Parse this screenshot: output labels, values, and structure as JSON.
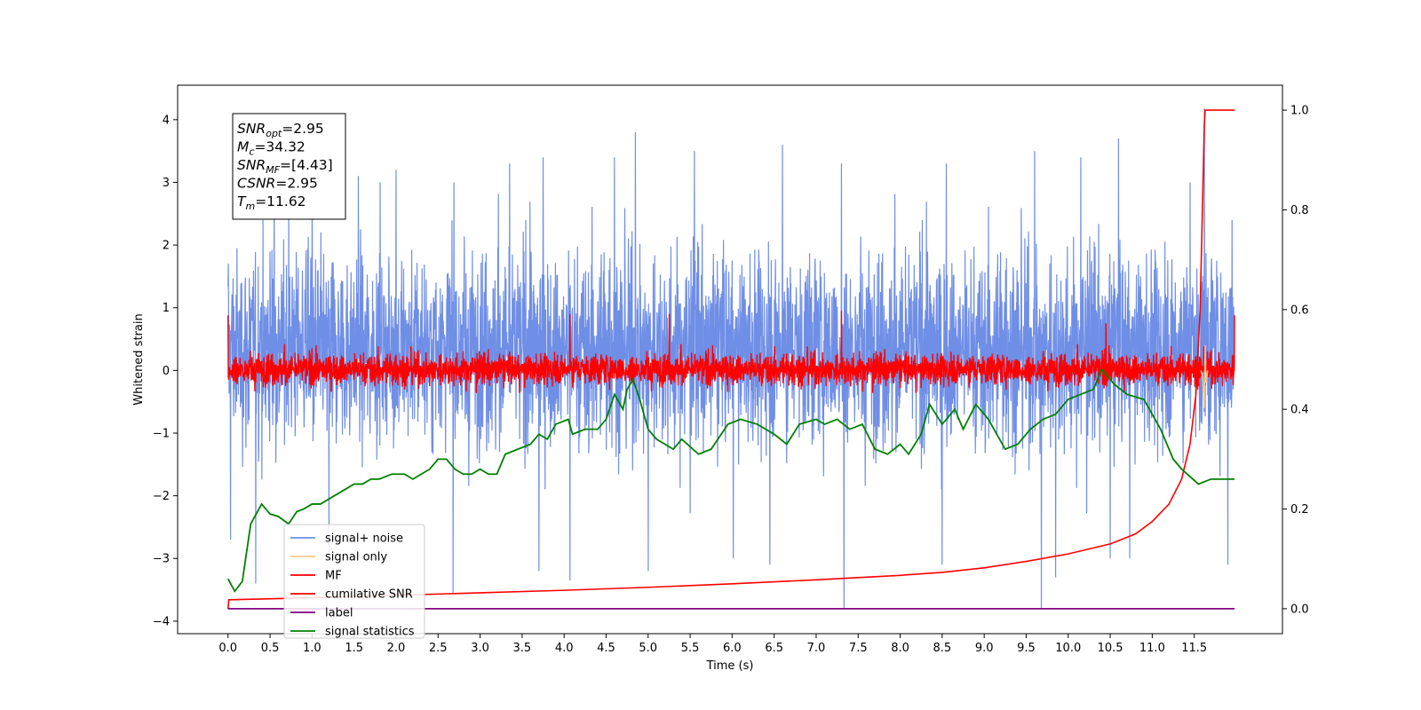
{
  "chart_data": {
    "type": "line",
    "xlabel": "Time (s)",
    "ylabel": "Whitened strain",
    "xlim": [
      -0.6,
      12.55
    ],
    "ylim_left": [
      -4.2,
      4.55
    ],
    "ylim_right": [
      -0.05,
      1.05
    ],
    "x_ticks": [
      "0.0",
      "0.5",
      "1.0",
      "1.5",
      "2.0",
      "2.5",
      "3.0",
      "3.5",
      "4.0",
      "4.5",
      "5.0",
      "5.5",
      "6.0",
      "6.5",
      "7.0",
      "7.5",
      "8.0",
      "8.5",
      "9.0",
      "9.5",
      "10.0",
      "10.5",
      "11.0",
      "11.5"
    ],
    "y_ticks_left": [
      "4",
      "3",
      "2",
      "1",
      "0",
      "−1",
      "−2",
      "−3",
      "−4"
    ],
    "y_ticks_right": [
      "1.0",
      "0.8",
      "0.6",
      "0.4",
      "0.2",
      "0.0"
    ],
    "grid": false,
    "legend": {
      "position": "lower-left",
      "entries": [
        {
          "label": "signal+ noise",
          "color": "#6f8ee6"
        },
        {
          "label": "signal only",
          "color": "#f5c98f"
        },
        {
          "label": "MF",
          "color": "#ff0000"
        },
        {
          "label": "cumilative SNR",
          "color": "#ff0000"
        },
        {
          "label": "label",
          "color": "#800080"
        },
        {
          "label": "signal statistics",
          "color": "#008000"
        }
      ]
    },
    "annotation": [
      {
        "sym": "SNR",
        "sub": "opt",
        "val": "=2.95"
      },
      {
        "sym": "M",
        "sub": "c",
        "val": "=34.32"
      },
      {
        "sym": "SNR",
        "sub": "MF",
        "val": "=[4.43]"
      },
      {
        "sym": "CSNR",
        "sub": "",
        "val": "=2.95"
      },
      {
        "sym": "T",
        "sub": "m",
        "val": "=11.62"
      }
    ],
    "series": [
      {
        "name": "signal+ noise",
        "axis": "left",
        "color": "#6f8ee6",
        "description": "dense noise trace",
        "x_range": [
          0,
          11.98
        ],
        "approx_range": [
          -3.5,
          4.2
        ],
        "peaks": [
          [
            0.03,
            2.6
          ],
          [
            0.55,
            3.3
          ],
          [
            1.0,
            3.0
          ],
          [
            1.55,
            3.1
          ],
          [
            2.0,
            3.2
          ],
          [
            3.35,
            3.3
          ],
          [
            3.75,
            3.4
          ],
          [
            4.6,
            3.4
          ],
          [
            4.85,
            3.8
          ],
          [
            5.55,
            3.5
          ],
          [
            6.6,
            3.6
          ],
          [
            7.3,
            3.3
          ],
          [
            8.55,
            3.3
          ],
          [
            9.6,
            3.5
          ],
          [
            10.15,
            3.4
          ],
          [
            10.6,
            3.7
          ],
          [
            11.45,
            3.0
          ],
          [
            11.62,
            4.18
          ],
          [
            11.95,
            2.4
          ]
        ],
        "troughs": [
          [
            0.03,
            -2.7
          ],
          [
            0.33,
            -3.4
          ],
          [
            1.2,
            -3.0
          ],
          [
            2.68,
            -3.55
          ],
          [
            3.7,
            -3.2
          ],
          [
            4.07,
            -3.35
          ],
          [
            5.0,
            -3.2
          ],
          [
            6.45,
            -3.1
          ],
          [
            7.33,
            -3.8
          ],
          [
            8.5,
            -3.1
          ],
          [
            9.68,
            -3.8
          ],
          [
            9.85,
            -3.3
          ],
          [
            10.5,
            -3.0
          ],
          [
            11.9,
            -3.1
          ]
        ]
      },
      {
        "name": "MF",
        "axis": "left",
        "color": "#ff0000",
        "description": "matched filter output around zero",
        "x_range": [
          0,
          11.98
        ],
        "approx_range": [
          -0.4,
          0.95
        ],
        "peaks": [
          [
            0.0,
            0.88
          ],
          [
            4.07,
            0.9
          ],
          [
            5.25,
            0.9
          ],
          [
            7.3,
            0.95
          ],
          [
            10.45,
            0.75
          ],
          [
            11.62,
            0.1
          ],
          [
            11.98,
            0.88
          ]
        ]
      },
      {
        "name": "cumilative SNR",
        "axis": "right",
        "color": "#ff0000",
        "points": [
          [
            0.0,
            0.0
          ],
          [
            0.01,
            0.018
          ],
          [
            1,
            0.022
          ],
          [
            2,
            0.027
          ],
          [
            3,
            0.032
          ],
          [
            4,
            0.037
          ],
          [
            5,
            0.043
          ],
          [
            6,
            0.05
          ],
          [
            7,
            0.058
          ],
          [
            8,
            0.067
          ],
          [
            8.5,
            0.073
          ],
          [
            9,
            0.082
          ],
          [
            9.5,
            0.095
          ],
          [
            10,
            0.11
          ],
          [
            10.5,
            0.13
          ],
          [
            10.8,
            0.15
          ],
          [
            11.0,
            0.175
          ],
          [
            11.2,
            0.21
          ],
          [
            11.35,
            0.26
          ],
          [
            11.45,
            0.33
          ],
          [
            11.52,
            0.43
          ],
          [
            11.57,
            0.6
          ],
          [
            11.6,
            0.82
          ],
          [
            11.62,
            0.97
          ],
          [
            11.63,
            1.0
          ],
          [
            11.98,
            1.0
          ]
        ]
      },
      {
        "name": "signal only",
        "axis": "left",
        "color": "#f5c98f",
        "points": [
          [
            11.58,
            0.0
          ],
          [
            11.6,
            -0.1
          ],
          [
            11.62,
            -0.6
          ],
          [
            11.63,
            0.4
          ],
          [
            11.64,
            -0.2
          ],
          [
            11.66,
            0.0
          ]
        ]
      },
      {
        "name": "label",
        "axis": "right",
        "color": "#800080",
        "points": [
          [
            0.0,
            0.0
          ],
          [
            11.98,
            0.0
          ]
        ]
      },
      {
        "name": "signal statistics",
        "axis": "right",
        "color": "#008000",
        "points": [
          [
            0.0,
            0.06
          ],
          [
            0.08,
            0.035
          ],
          [
            0.17,
            0.055
          ],
          [
            0.27,
            0.17
          ],
          [
            0.4,
            0.21
          ],
          [
            0.5,
            0.19
          ],
          [
            0.6,
            0.185
          ],
          [
            0.72,
            0.17
          ],
          [
            0.82,
            0.195
          ],
          [
            0.9,
            0.2
          ],
          [
            1.0,
            0.21
          ],
          [
            1.1,
            0.21
          ],
          [
            1.2,
            0.22
          ],
          [
            1.3,
            0.23
          ],
          [
            1.4,
            0.24
          ],
          [
            1.5,
            0.25
          ],
          [
            1.6,
            0.25
          ],
          [
            1.7,
            0.26
          ],
          [
            1.8,
            0.26
          ],
          [
            1.95,
            0.27
          ],
          [
            2.1,
            0.27
          ],
          [
            2.2,
            0.26
          ],
          [
            2.3,
            0.27
          ],
          [
            2.4,
            0.28
          ],
          [
            2.5,
            0.3
          ],
          [
            2.6,
            0.3
          ],
          [
            2.7,
            0.28
          ],
          [
            2.8,
            0.27
          ],
          [
            2.9,
            0.27
          ],
          [
            3.0,
            0.28
          ],
          [
            3.1,
            0.27
          ],
          [
            3.2,
            0.27
          ],
          [
            3.3,
            0.31
          ],
          [
            3.45,
            0.32
          ],
          [
            3.6,
            0.33
          ],
          [
            3.7,
            0.35
          ],
          [
            3.8,
            0.34
          ],
          [
            3.9,
            0.37
          ],
          [
            4.05,
            0.38
          ],
          [
            4.1,
            0.35
          ],
          [
            4.25,
            0.36
          ],
          [
            4.4,
            0.36
          ],
          [
            4.5,
            0.38
          ],
          [
            4.6,
            0.43
          ],
          [
            4.7,
            0.4
          ],
          [
            4.75,
            0.44
          ],
          [
            4.82,
            0.46
          ],
          [
            4.9,
            0.42
          ],
          [
            5.0,
            0.36
          ],
          [
            5.1,
            0.34
          ],
          [
            5.3,
            0.32
          ],
          [
            5.4,
            0.34
          ],
          [
            5.6,
            0.31
          ],
          [
            5.75,
            0.32
          ],
          [
            5.95,
            0.37
          ],
          [
            6.1,
            0.38
          ],
          [
            6.3,
            0.37
          ],
          [
            6.5,
            0.35
          ],
          [
            6.65,
            0.33
          ],
          [
            6.8,
            0.37
          ],
          [
            7.0,
            0.38
          ],
          [
            7.1,
            0.37
          ],
          [
            7.25,
            0.38
          ],
          [
            7.4,
            0.36
          ],
          [
            7.55,
            0.37
          ],
          [
            7.7,
            0.32
          ],
          [
            7.85,
            0.31
          ],
          [
            8.0,
            0.33
          ],
          [
            8.1,
            0.31
          ],
          [
            8.25,
            0.35
          ],
          [
            8.35,
            0.41
          ],
          [
            8.5,
            0.37
          ],
          [
            8.65,
            0.4
          ],
          [
            8.75,
            0.36
          ],
          [
            8.9,
            0.41
          ],
          [
            9.05,
            0.38
          ],
          [
            9.25,
            0.32
          ],
          [
            9.4,
            0.33
          ],
          [
            9.55,
            0.36
          ],
          [
            9.7,
            0.38
          ],
          [
            9.85,
            0.39
          ],
          [
            10.0,
            0.42
          ],
          [
            10.15,
            0.43
          ],
          [
            10.3,
            0.44
          ],
          [
            10.4,
            0.48
          ],
          [
            10.55,
            0.45
          ],
          [
            10.7,
            0.43
          ],
          [
            10.9,
            0.42
          ],
          [
            11.1,
            0.36
          ],
          [
            11.25,
            0.3
          ],
          [
            11.35,
            0.28
          ],
          [
            11.55,
            0.25
          ],
          [
            11.7,
            0.26
          ],
          [
            11.85,
            0.26
          ],
          [
            11.98,
            0.26
          ]
        ]
      }
    ]
  }
}
